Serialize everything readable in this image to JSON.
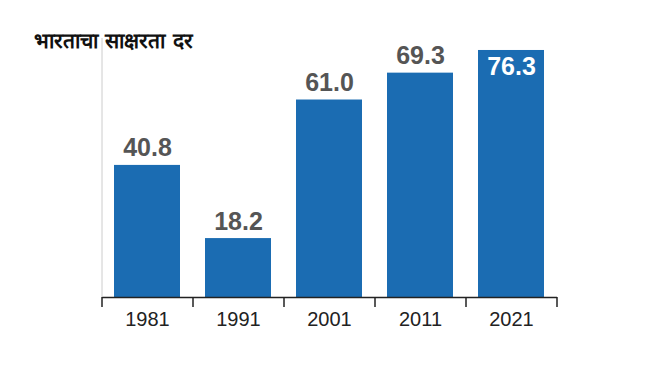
{
  "chart_data": {
    "type": "bar",
    "title": "भारताचा साक्षरता दर",
    "categories": [
      "1981",
      "1991",
      "2001",
      "2011",
      "2021"
    ],
    "values": [
      40.8,
      18.2,
      61.0,
      69.3,
      76.3
    ],
    "value_labels": [
      "40.8",
      "18.2",
      "61.0",
      "69.3",
      "76.3"
    ],
    "color": "#1b6cb2",
    "ylim": [
      0,
      80
    ],
    "grid": false,
    "data_labels": true,
    "tick_labels": "x"
  }
}
